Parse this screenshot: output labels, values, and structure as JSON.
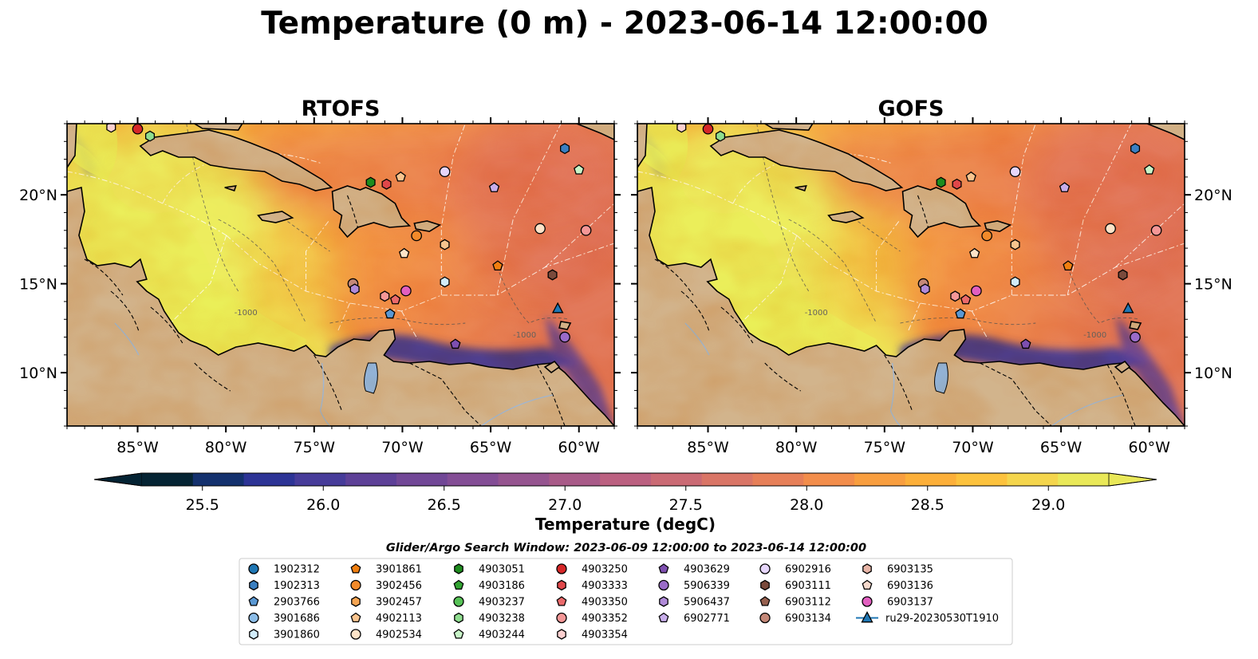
{
  "title": "Temperature (0 m) - 2023-06-14 12:00:00",
  "panels": [
    {
      "name": "RTOFS",
      "variant": 0
    },
    {
      "name": "GOFS",
      "variant": 1
    }
  ],
  "map_extent": {
    "lon": [
      -89,
      -58
    ],
    "lat": [
      7,
      24
    ]
  },
  "lon_ticks": [
    {
      "value": -85,
      "label": "85°W"
    },
    {
      "value": -80,
      "label": "80°W"
    },
    {
      "value": -75,
      "label": "75°W"
    },
    {
      "value": -70,
      "label": "70°W"
    },
    {
      "value": -65,
      "label": "65°W"
    },
    {
      "value": -60,
      "label": "60°W"
    }
  ],
  "lat_ticks": [
    {
      "value": 10,
      "label": "10°N"
    },
    {
      "value": 15,
      "label": "15°N"
    },
    {
      "value": 20,
      "label": "20°N"
    }
  ],
  "contour_label": "-1000",
  "colorbar": {
    "label": "Temperature (degC)",
    "range": [
      25.25,
      29.25
    ],
    "ticks": [
      "25.5",
      "26.0",
      "26.5",
      "27.0",
      "27.5",
      "28.0",
      "28.5",
      "29.0"
    ],
    "tick_values": [
      25.5,
      26.0,
      26.5,
      27.0,
      27.5,
      28.0,
      28.5,
      29.0
    ],
    "colors": [
      "#042333",
      "#13306d",
      "#2c3395",
      "#463b99",
      "#5d4097",
      "#714796",
      "#834d95",
      "#95548f",
      "#a85a88",
      "#bb6080",
      "#ca6a74",
      "#d97566",
      "#e67f58",
      "#f28d4b",
      "#f89e3f",
      "#fcaf39",
      "#fcc23d",
      "#f4d54c",
      "#e9e858"
    ]
  },
  "legend": {
    "search_window": "Glider/Argo Search Window: 2023-06-09 12:00:00 to 2023-06-14 12:00:00",
    "columns": [
      [
        {
          "id": "1902312",
          "marker": "circle",
          "color": "#1f77b4"
        },
        {
          "id": "1902313",
          "marker": "hexagon",
          "color": "#3a7fc1"
        },
        {
          "id": "2903766",
          "marker": "pentagon",
          "color": "#5a98d3"
        },
        {
          "id": "3901686",
          "marker": "circle",
          "color": "#8cbde8"
        },
        {
          "id": "3901860",
          "marker": "hexagon",
          "color": "#d2ecfa"
        }
      ],
      [
        {
          "id": "3901861",
          "marker": "pentagon",
          "color": "#f07f10"
        },
        {
          "id": "3902456",
          "marker": "circle",
          "color": "#f28a2a"
        },
        {
          "id": "3902457",
          "marker": "hexagon",
          "color": "#f6a552"
        },
        {
          "id": "4902113",
          "marker": "pentagon",
          "color": "#f9c48e"
        },
        {
          "id": "4902534",
          "marker": "circle",
          "color": "#fde3c8"
        }
      ],
      [
        {
          "id": "4903051",
          "marker": "hexagon",
          "color": "#1e8c1e"
        },
        {
          "id": "4903186",
          "marker": "pentagon",
          "color": "#32a432"
        },
        {
          "id": "4903237",
          "marker": "circle",
          "color": "#57c257"
        },
        {
          "id": "4903238",
          "marker": "hexagon",
          "color": "#8fdd8f"
        },
        {
          "id": "4903244",
          "marker": "pentagon",
          "color": "#c8f5c8"
        }
      ],
      [
        {
          "id": "4903250",
          "marker": "circle",
          "color": "#d62728"
        },
        {
          "id": "4903333",
          "marker": "hexagon",
          "color": "#e0474a"
        },
        {
          "id": "4903350",
          "marker": "pentagon",
          "color": "#ea6a6b"
        },
        {
          "id": "4903352",
          "marker": "circle",
          "color": "#f59797"
        },
        {
          "id": "4903354",
          "marker": "hexagon",
          "color": "#fcd0d0"
        }
      ],
      [
        {
          "id": "4903629",
          "marker": "pentagon",
          "color": "#7e4fb0"
        },
        {
          "id": "5906339",
          "marker": "circle",
          "color": "#9a6bc8"
        },
        {
          "id": "5906437",
          "marker": "hexagon",
          "color": "#b08ad8"
        },
        {
          "id": "6902771",
          "marker": "pentagon",
          "color": "#c8aeea"
        },
        {
          "id": "",
          "marker": "none",
          "color": ""
        }
      ],
      [
        {
          "id": "6902916",
          "marker": "circle",
          "color": "#e6d6fb"
        },
        {
          "id": "6903111",
          "marker": "hexagon",
          "color": "#7a4a3c"
        },
        {
          "id": "6903112",
          "marker": "pentagon",
          "color": "#96604f"
        },
        {
          "id": "6903134",
          "marker": "circle",
          "color": "#c48878"
        },
        {
          "id": "",
          "marker": "none",
          "color": ""
        }
      ],
      [
        {
          "id": "6903135",
          "marker": "hexagon",
          "color": "#e8b5a7"
        },
        {
          "id": "6903136",
          "marker": "pentagon",
          "color": "#f5d9cc"
        },
        {
          "id": "6903137",
          "marker": "circle",
          "color": "#e25fc0"
        },
        {
          "id": "ru29-20230530T1910",
          "marker": "triangle-line",
          "color": "#1f77b4"
        },
        {
          "id": "",
          "marker": "none",
          "color": ""
        }
      ]
    ]
  },
  "map_markers": [
    {
      "lon": -85.0,
      "lat": 23.7,
      "marker": "circle",
      "color": "#d62728"
    },
    {
      "lon": -86.5,
      "lat": 23.8,
      "marker": "hexagon",
      "color": "#fcd0d0"
    },
    {
      "lon": -84.3,
      "lat": 23.3,
      "marker": "hexagon",
      "color": "#8fdd8f"
    },
    {
      "lon": -60.8,
      "lat": 22.6,
      "marker": "hexagon",
      "color": "#3a7fc1"
    },
    {
      "lon": -60.0,
      "lat": 21.4,
      "marker": "pentagon",
      "color": "#c8f5c8"
    },
    {
      "lon": -71.8,
      "lat": 20.7,
      "marker": "hexagon",
      "color": "#1e8c1e"
    },
    {
      "lon": -70.9,
      "lat": 20.6,
      "marker": "hexagon",
      "color": "#e0474a"
    },
    {
      "lon": -70.1,
      "lat": 21.0,
      "marker": "pentagon",
      "color": "#f9c48e"
    },
    {
      "lon": -67.6,
      "lat": 21.3,
      "marker": "circle",
      "color": "#e6d6fb"
    },
    {
      "lon": -64.8,
      "lat": 20.4,
      "marker": "pentagon",
      "color": "#c8aeea"
    },
    {
      "lon": -62.2,
      "lat": 18.1,
      "marker": "circle",
      "color": "#fde3c8"
    },
    {
      "lon": -59.6,
      "lat": 18.0,
      "marker": "circle",
      "color": "#f59797"
    },
    {
      "lon": -69.2,
      "lat": 17.7,
      "marker": "circle",
      "color": "#f28a2a"
    },
    {
      "lon": -67.6,
      "lat": 17.2,
      "marker": "hexagon",
      "color": "#f9c48e"
    },
    {
      "lon": -69.9,
      "lat": 16.7,
      "marker": "pentagon",
      "color": "#fde3c8"
    },
    {
      "lon": -64.6,
      "lat": 16.0,
      "marker": "pentagon",
      "color": "#f07f10"
    },
    {
      "lon": -67.6,
      "lat": 15.1,
      "marker": "hexagon",
      "color": "#d2ecfa"
    },
    {
      "lon": -61.5,
      "lat": 15.5,
      "marker": "hexagon",
      "color": "#7a4a3c"
    },
    {
      "lon": -72.8,
      "lat": 15.0,
      "marker": "circle",
      "color": "#c48878"
    },
    {
      "lon": -72.7,
      "lat": 14.7,
      "marker": "hexagon",
      "color": "#b08ad8"
    },
    {
      "lon": -71.0,
      "lat": 14.3,
      "marker": "hexagon",
      "color": "#f59797"
    },
    {
      "lon": -70.4,
      "lat": 14.1,
      "marker": "pentagon",
      "color": "#ea6a6b"
    },
    {
      "lon": -69.8,
      "lat": 14.6,
      "marker": "circle",
      "color": "#e25fc0"
    },
    {
      "lon": -70.7,
      "lat": 13.3,
      "marker": "pentagon",
      "color": "#5a98d3"
    },
    {
      "lon": -61.2,
      "lat": 13.6,
      "marker": "triangle",
      "color": "#1f77b4"
    },
    {
      "lon": -67.0,
      "lat": 11.6,
      "marker": "pentagon",
      "color": "#7e4fb0"
    },
    {
      "lon": -60.8,
      "lat": 12.0,
      "marker": "circle",
      "color": "#9a6bc8"
    }
  ]
}
